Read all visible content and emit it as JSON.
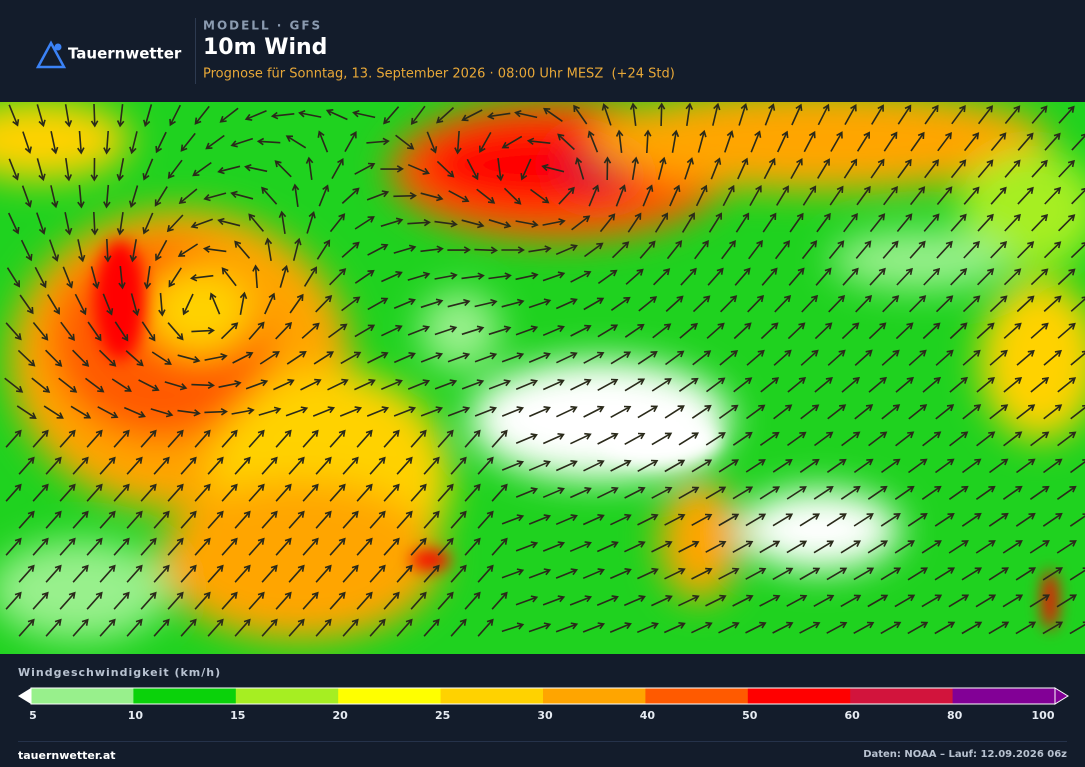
{
  "header": {
    "brand": "Tauernwetter",
    "model": "MODELL · GFS",
    "title": "10m Wind",
    "subtitle": "Prognose für Sonntag, 13. September 2026 · 08:00 Uhr MESZ  (+24 Std)"
  },
  "legend": {
    "title": "Windgeschwindigkeit (km/h)",
    "ticks": [
      5,
      10,
      15,
      20,
      25,
      30,
      40,
      50,
      60,
      80,
      100
    ],
    "colors": [
      "#98f08c",
      "#0ad20a",
      "#a6ee22",
      "#ffff00",
      "#ffd200",
      "#ffa500",
      "#ff5a00",
      "#ff0000",
      "#d2143c",
      "#820096"
    ]
  },
  "footer": {
    "site": "tauernwetter.at",
    "source": "Daten: NOAA – Lauf: 12.09.2026 06z"
  }
}
